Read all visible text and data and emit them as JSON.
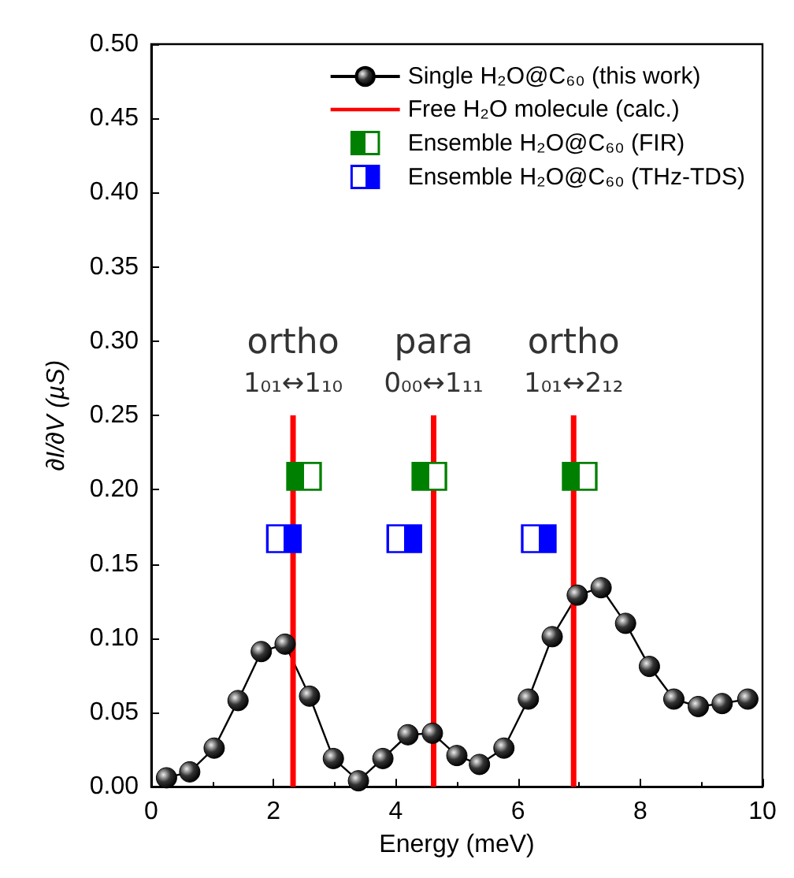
{
  "chart_data": {
    "type": "line",
    "xlabel": "Energy (meV)",
    "ylabel": "∂I/∂V (µS)",
    "xlim": [
      0,
      10
    ],
    "xticks": [
      0,
      2,
      4,
      6,
      8,
      10
    ],
    "ylim": [
      0,
      0.5
    ],
    "yticks": [
      {
        "value": 0,
        "label": "0.00"
      },
      {
        "value": 0.05,
        "label": "0.05"
      },
      {
        "value": 0.1,
        "label": "0.10"
      },
      {
        "value": 0.15,
        "label": "0.15"
      },
      {
        "value": 0.2,
        "label": "0.20"
      },
      {
        "value": 0.25,
        "label": "0.25"
      },
      {
        "value": 0.3,
        "label": "0.30"
      },
      {
        "value": 0.35,
        "label": "0.35"
      },
      {
        "value": 0.4,
        "label": "0.40"
      },
      {
        "value": 0.45,
        "label": "0.45"
      },
      {
        "value": 0.5,
        "label": "0.50"
      }
    ],
    "grid": false,
    "legend": "top right",
    "series": [
      {
        "name": "Single H₂O@C₆₀ (this work)",
        "color": "#000000",
        "marker": "circle",
        "x": [
          0.25,
          0.63,
          1.03,
          1.42,
          1.8,
          2.19,
          2.59,
          2.98,
          3.39,
          3.79,
          4.2,
          4.6,
          5.0,
          5.37,
          5.77,
          6.17,
          6.56,
          6.97,
          7.36,
          7.76,
          8.15,
          8.55,
          8.95,
          9.34,
          9.76
        ],
        "values": [
          0.006,
          0.01,
          0.026,
          0.058,
          0.091,
          0.096,
          0.061,
          0.019,
          0.004,
          0.019,
          0.035,
          0.036,
          0.021,
          0.015,
          0.026,
          0.059,
          0.101,
          0.129,
          0.134,
          0.11,
          0.081,
          0.059,
          0.054,
          0.056,
          0.059
        ]
      },
      {
        "name": "Free H₂O molecule (calc.)",
        "color": "#ff0000",
        "marker": "none",
        "x": [
          2.32,
          2.32
        ],
        "values": [
          0,
          0.25
        ]
      },
      {
        "color": "#ff0000",
        "marker": "none",
        "x": [
          4.62,
          4.62
        ],
        "values": [
          0,
          0.25
        ]
      },
      {
        "color": "#ff0000",
        "marker": "none",
        "x": [
          6.91,
          6.91
        ],
        "values": [
          0,
          0.25
        ]
      },
      {
        "name": "Ensemble H₂O@C₆₀ (FIR)",
        "type": "scatter",
        "color": "#008000",
        "marker": "square",
        "x": [
          2.5,
          4.55,
          7.01
        ],
        "values": [
          0.209,
          0.209,
          0.209
        ]
      },
      {
        "name": "Ensemble H₂O@C₆₀ (THz-TDS)",
        "type": "scatter",
        "color": "#0000ff",
        "marker": "square",
        "x": [
          2.17,
          4.14,
          6.34
        ],
        "values": [
          0.167,
          0.167,
          0.167
        ]
      }
    ],
    "annotations": [
      {
        "text": "ortho",
        "x": 2.32,
        "y": 0.25
      },
      {
        "text": "1₀₁↔1₁₀",
        "x": 2.32,
        "y": 0.25
      },
      {
        "text": "para",
        "x": 4.62,
        "y": 0.25
      },
      {
        "text": "0₀₀↔1₁₁",
        "x": 4.62,
        "y": 0.25
      },
      {
        "text": "ortho",
        "x": 6.91,
        "y": 0.25
      },
      {
        "text": "1₀₁↔2₁₂",
        "x": 6.91,
        "y": 0.25
      }
    ]
  }
}
